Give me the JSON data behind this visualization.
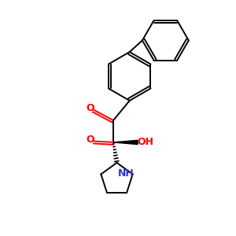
{
  "background": "#ffffff",
  "line_color": "#000000",
  "bond_width": 1.4,
  "O_color": "#ff0000",
  "N_color": "#3333cc",
  "figsize": [
    3.0,
    3.0
  ],
  "dpi": 100,
  "xlim": [
    0,
    10
  ],
  "ylim": [
    0,
    10
  ]
}
